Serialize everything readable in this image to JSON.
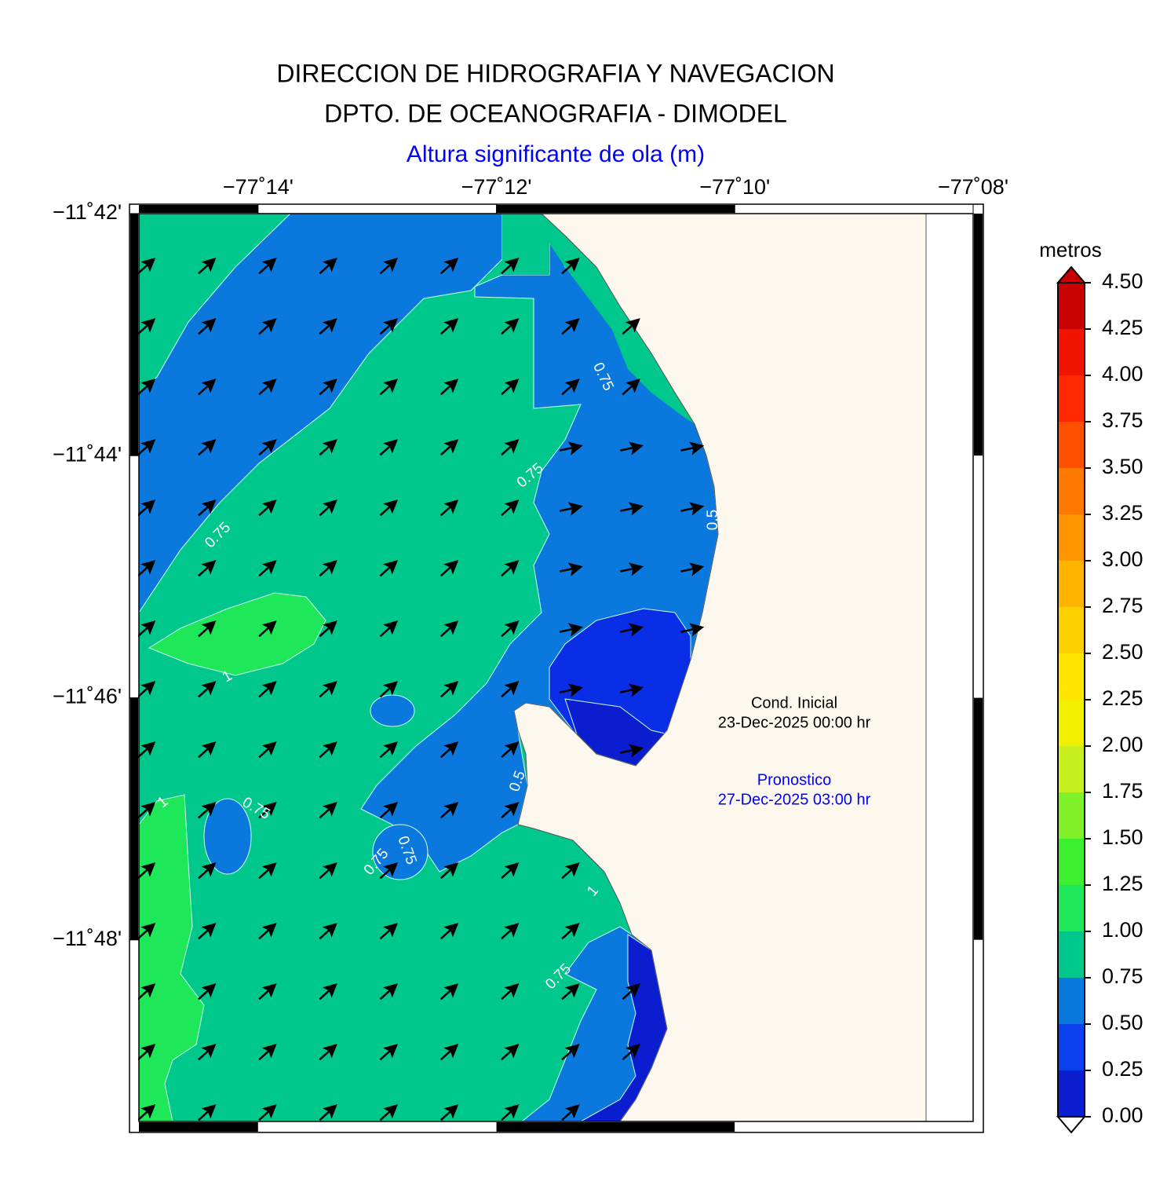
{
  "header": {
    "title_line1": "DIRECCION DE HIDROGRAFIA Y NAVEGACION",
    "title_line2": "DPTO. DE OCEANOGRAFIA - DIMODEL",
    "subtitle": "Altura significante de ola (m)"
  },
  "map": {
    "xlim": [
      -77.25,
      -77.13333
    ],
    "ylim": [
      -11.825,
      -11.7
    ],
    "xticks": [
      {
        "value": -77.23333,
        "label": "−77˚14'"
      },
      {
        "value": -77.2,
        "label": "−77˚12'"
      },
      {
        "value": -77.16667,
        "label": "−77˚10'"
      },
      {
        "value": -77.13333,
        "label": "−77˚08'"
      }
    ],
    "yticks": [
      {
        "value": -11.7,
        "label": "−11˚42'"
      },
      {
        "value": -11.73333,
        "label": "−11˚44'"
      },
      {
        "value": -11.76667,
        "label": "−11˚46'"
      },
      {
        "value": -11.8,
        "label": "−11˚48'"
      }
    ],
    "contour_labels": [
      "0.75",
      "0.75",
      "0.75",
      "1",
      "1",
      "0.75",
      "0.75",
      "0.75",
      "1",
      "0.75",
      "0.5",
      "0.5"
    ]
  },
  "colorbar": {
    "title": "metros",
    "lim": [
      0,
      4.5
    ],
    "colors": [
      "#0a1ed0",
      "#0a40ec",
      "#0a78dc",
      "#00c88c",
      "#1ee85a",
      "#3cf030",
      "#80f028",
      "#c8f01e",
      "#f0f000",
      "#ffe600",
      "#ffd000",
      "#ffb400",
      "#ff9600",
      "#ff7800",
      "#ff5000",
      "#ff2800",
      "#f01400",
      "#c80000"
    ],
    "ticks": [
      {
        "value": 0,
        "label": "0.00"
      },
      {
        "value": 0.25,
        "label": "0.25"
      },
      {
        "value": 0.5,
        "label": "0.50"
      },
      {
        "value": 0.75,
        "label": "0.75"
      },
      {
        "value": 1,
        "label": "1.00"
      },
      {
        "value": 1.25,
        "label": "1.25"
      },
      {
        "value": 1.5,
        "label": "1.50"
      },
      {
        "value": 1.75,
        "label": "1.75"
      },
      {
        "value": 2,
        "label": "2.00"
      },
      {
        "value": 2.25,
        "label": "2.25"
      },
      {
        "value": 2.5,
        "label": "2.50"
      },
      {
        "value": 2.75,
        "label": "2.75"
      },
      {
        "value": 3,
        "label": "3.00"
      },
      {
        "value": 3.25,
        "label": "3.25"
      },
      {
        "value": 3.5,
        "label": "3.50"
      },
      {
        "value": 3.75,
        "label": "3.75"
      },
      {
        "value": 4,
        "label": "4.00"
      },
      {
        "value": 4.25,
        "label": "4.25"
      },
      {
        "value": 4.5,
        "label": "4.50"
      }
    ]
  },
  "annotations": {
    "initial_label": "Cond. Inicial",
    "initial_date": "23-Dec-2025 00:00 hr",
    "forecast_label": "Pronostico",
    "forecast_date": "27-Dec-2025 03:00 hr"
  }
}
